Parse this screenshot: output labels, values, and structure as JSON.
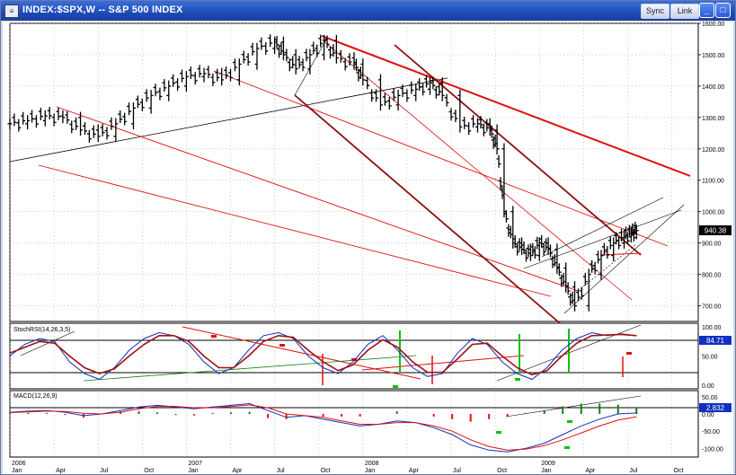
{
  "window": {
    "title": "INDEX:$SPX,W -- S&P 500 INDEX",
    "app_icon": "chart-app-icon",
    "buttons": [
      "Sync",
      "Link"
    ],
    "controls": [
      "minimize-icon",
      "maximize-icon",
      "close-icon"
    ]
  },
  "chart_data": [
    {
      "type": "line",
      "subtype": "ohlc-bars",
      "title": "INDEX:$SPX,W -- S&P 500 INDEX",
      "ylim": [
        650,
        1600
      ],
      "y_ticks": [
        "1600.00",
        "1500.00",
        "1400.00",
        "1300.00",
        "1200.00",
        "1100.00",
        "1000.00",
        "900.00",
        "800.00",
        "700.00"
      ],
      "last_value": "940.38",
      "color": "#000000",
      "trendline_color": "#e01010",
      "channel_color": "#8a1010",
      "x_ticks": [
        {
          "label": "2006",
          "sub": "Jan"
        },
        {
          "label": "",
          "sub": "Apr"
        },
        {
          "label": "",
          "sub": "Jul"
        },
        {
          "label": "",
          "sub": "Oct"
        },
        {
          "label": "2007",
          "sub": "Jan"
        },
        {
          "label": "",
          "sub": "Apr"
        },
        {
          "label": "",
          "sub": "Jul"
        },
        {
          "label": "",
          "sub": "Oct"
        },
        {
          "label": "2008",
          "sub": "Jan"
        },
        {
          "label": "",
          "sub": "Apr"
        },
        {
          "label": "",
          "sub": "Jul"
        },
        {
          "label": "",
          "sub": "Oct"
        },
        {
          "label": "2009",
          "sub": "Jan"
        },
        {
          "label": "",
          "sub": "Apr"
        },
        {
          "label": "",
          "sub": "Jul"
        },
        {
          "label": "",
          "sub": "Oct"
        }
      ],
      "series": [
        {
          "values": [
            [
              2006.0,
              1280
            ],
            [
              2006.1,
              1290
            ],
            [
              2006.2,
              1305
            ],
            [
              2006.3,
              1300
            ],
            [
              2006.4,
              1260
            ],
            [
              2006.5,
              1240
            ],
            [
              2006.6,
              1280
            ],
            [
              2006.7,
              1330
            ],
            [
              2006.8,
              1370
            ],
            [
              2006.9,
              1400
            ],
            [
              2007.0,
              1430
            ],
            [
              2007.1,
              1440
            ],
            [
              2007.2,
              1420
            ],
            [
              2007.3,
              1470
            ],
            [
              2007.4,
              1520
            ],
            [
              2007.5,
              1540
            ],
            [
              2007.55,
              1500
            ],
            [
              2007.62,
              1455
            ],
            [
              2007.7,
              1500
            ],
            [
              2007.78,
              1545
            ],
            [
              2007.85,
              1490
            ],
            [
              2007.95,
              1470
            ],
            [
              2008.0,
              1420
            ],
            [
              2008.1,
              1340
            ],
            [
              2008.2,
              1370
            ],
            [
              2008.3,
              1390
            ],
            [
              2008.38,
              1410
            ],
            [
              2008.45,
              1370
            ],
            [
              2008.55,
              1270
            ],
            [
              2008.65,
              1280
            ],
            [
              2008.72,
              1260
            ],
            [
              2008.76,
              1200
            ],
            [
              2008.8,
              1000
            ],
            [
              2008.85,
              900
            ],
            [
              2008.9,
              880
            ],
            [
              2008.95,
              860
            ],
            [
              2009.0,
              900
            ],
            [
              2009.05,
              880
            ],
            [
              2009.1,
              820
            ],
            [
              2009.15,
              760
            ],
            [
              2009.2,
              700
            ],
            [
              2009.28,
              800
            ],
            [
              2009.35,
              860
            ],
            [
              2009.42,
              900
            ],
            [
              2009.48,
              920
            ],
            [
              2009.52,
              930
            ],
            [
              2009.55,
              940
            ]
          ]
        }
      ]
    },
    {
      "type": "line",
      "title": "StochRSI(14,26,3,5)",
      "ylim": [
        0,
        100
      ],
      "y_ticks": [
        "100.00",
        "50.00",
        "0.00"
      ],
      "last_value": "84.71",
      "series": [
        {
          "name": "StochRSI",
          "color": "#1030c0",
          "values": [
            50,
            70,
            80,
            75,
            40,
            20,
            10,
            30,
            60,
            80,
            90,
            85,
            70,
            40,
            20,
            30,
            60,
            85,
            90,
            80,
            50,
            30,
            20,
            40,
            70,
            85,
            60,
            30,
            15,
            20,
            55,
            80,
            70,
            40,
            20,
            10,
            30,
            60,
            80,
            90,
            85,
            88,
            84.71
          ]
        },
        {
          "name": "Signal",
          "color": "#a01010",
          "values": [
            55,
            65,
            75,
            72,
            50,
            30,
            20,
            28,
            50,
            70,
            85,
            85,
            75,
            50,
            30,
            30,
            50,
            75,
            85,
            82,
            60,
            40,
            25,
            35,
            60,
            78,
            65,
            40,
            22,
            22,
            45,
            70,
            72,
            50,
            30,
            18,
            25,
            50,
            72,
            85,
            86,
            87,
            85
          ]
        }
      ]
    },
    {
      "type": "line",
      "title": "MACD(12,26,9)",
      "ylim": [
        -120,
        60
      ],
      "y_ticks": [
        "50.00",
        "0.00",
        "-50.00",
        "-100.00"
      ],
      "last_value": "2.832",
      "series": [
        {
          "name": "MACD",
          "color": "#1030c0",
          "values": [
            5,
            8,
            10,
            5,
            -5,
            0,
            10,
            20,
            25,
            20,
            15,
            20,
            25,
            30,
            10,
            -10,
            -5,
            -15,
            -25,
            -35,
            -30,
            -20,
            -25,
            -40,
            -60,
            -90,
            -105,
            -110,
            -100,
            -85,
            -60,
            -35,
            -15,
            0,
            2.832
          ]
        },
        {
          "name": "Signal",
          "color": "#e01010",
          "values": [
            4,
            6,
            8,
            7,
            2,
            0,
            5,
            15,
            22,
            22,
            18,
            18,
            22,
            26,
            18,
            0,
            -5,
            -10,
            -20,
            -30,
            -30,
            -25,
            -25,
            -35,
            -50,
            -75,
            -95,
            -105,
            -102,
            -92,
            -75,
            -55,
            -35,
            -18,
            -8
          ]
        }
      ],
      "histogram_colors": {
        "positive": "#108010",
        "negative": "#e01010"
      }
    }
  ]
}
